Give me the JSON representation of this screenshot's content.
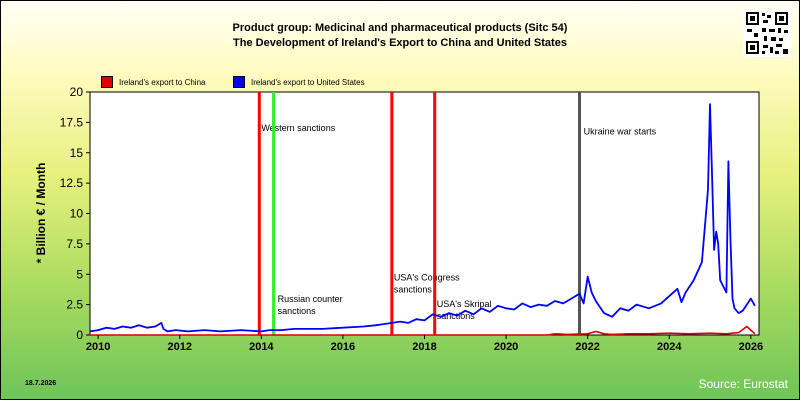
{
  "title": {
    "line1": "Product group: Medicinal and pharmaceutical products (Sitc 54)",
    "line2": "The Development of Ireland's Export to  China and United States"
  },
  "date_stamp": "18.7.2026",
  "source": "Source: Eurostat",
  "colors": {
    "china": "#e00000",
    "usa": "#0000ff",
    "sanction_red": "#ff0000",
    "sanction_green": "#33ee33",
    "war": "#555555"
  },
  "chart_data": {
    "type": "line",
    "title": "Product group: Medicinal and pharmaceutical products (Sitc 54)",
    "subtitle": "The Development of Ireland's Export to  China and United States",
    "xlabel": "",
    "ylabel": "* Billion € / Month",
    "xlim": [
      2009.8,
      2026.2
    ],
    "ylim": [
      0,
      20
    ],
    "x_ticks": [
      "2010",
      "2012",
      "2014",
      "2016",
      "2018",
      "2020",
      "2022",
      "2024",
      "2026"
    ],
    "y_ticks": [
      "0",
      "2.5",
      "5",
      "7.5",
      "10",
      "12.5",
      "15",
      "17.5",
      "20"
    ],
    "grid": false,
    "legend_position": "top-left",
    "series": [
      {
        "name": "Ireland's export to China",
        "color": "#e00000",
        "x": [
          2009.8,
          2021.0,
          2021.2,
          2021.5,
          2022.0,
          2022.2,
          2022.4,
          2022.6,
          2023.0,
          2023.5,
          2024.0,
          2024.5,
          2025.0,
          2025.4,
          2025.7,
          2025.9,
          2026.0,
          2026.1
        ],
        "values": [
          0.0,
          0.0,
          0.1,
          0.05,
          0.1,
          0.3,
          0.1,
          0.05,
          0.1,
          0.1,
          0.15,
          0.1,
          0.15,
          0.1,
          0.2,
          0.7,
          0.4,
          0.1
        ]
      },
      {
        "name": "Ireland's export to United States",
        "color": "#0000ff",
        "x": [
          2009.8,
          2010.0,
          2010.2,
          2010.4,
          2010.6,
          2010.8,
          2011.0,
          2011.2,
          2011.4,
          2011.55,
          2011.6,
          2011.7,
          2011.9,
          2012.2,
          2012.6,
          2013.0,
          2013.5,
          2014.0,
          2014.2,
          2014.5,
          2014.8,
          2015.0,
          2015.5,
          2016.0,
          2016.5,
          2016.8,
          2017.0,
          2017.2,
          2017.4,
          2017.6,
          2017.8,
          2018.0,
          2018.2,
          2018.4,
          2018.6,
          2018.8,
          2019.0,
          2019.2,
          2019.4,
          2019.6,
          2019.8,
          2020.0,
          2020.2,
          2020.4,
          2020.6,
          2020.8,
          2021.0,
          2021.2,
          2021.4,
          2021.6,
          2021.8,
          2021.9,
          2022.0,
          2022.1,
          2022.2,
          2022.4,
          2022.6,
          2022.8,
          2023.0,
          2023.2,
          2023.5,
          2023.8,
          2024.0,
          2024.2,
          2024.3,
          2024.4,
          2024.6,
          2024.8,
          2024.9,
          2024.95,
          2025.0,
          2025.05,
          2025.1,
          2025.15,
          2025.2,
          2025.25,
          2025.4,
          2025.45,
          2025.5,
          2025.55,
          2025.6,
          2025.7,
          2025.8,
          2025.9,
          2026.0,
          2026.1
        ],
        "values": [
          0.3,
          0.4,
          0.6,
          0.5,
          0.7,
          0.6,
          0.8,
          0.6,
          0.7,
          1.0,
          0.5,
          0.3,
          0.4,
          0.3,
          0.4,
          0.3,
          0.4,
          0.3,
          0.4,
          0.4,
          0.5,
          0.5,
          0.5,
          0.6,
          0.7,
          0.8,
          0.9,
          1.0,
          1.1,
          1.0,
          1.3,
          1.2,
          1.7,
          1.5,
          1.8,
          1.6,
          2.0,
          1.7,
          2.2,
          1.9,
          2.4,
          2.2,
          2.1,
          2.6,
          2.3,
          2.5,
          2.4,
          2.8,
          2.6,
          3.0,
          3.4,
          2.6,
          4.8,
          3.5,
          2.8,
          1.8,
          1.5,
          2.2,
          2.0,
          2.5,
          2.2,
          2.6,
          3.2,
          3.8,
          2.7,
          3.5,
          4.5,
          6.0,
          10.0,
          12.0,
          19.0,
          13.0,
          7.0,
          8.5,
          7.5,
          4.5,
          3.5,
          14.3,
          8.0,
          3.0,
          2.2,
          1.8,
          2.0,
          2.5,
          3.0,
          2.4
        ]
      }
    ],
    "annotations": [
      {
        "label": "",
        "x": 2013.95,
        "color": "#ff0000",
        "kind": "vline"
      },
      {
        "label": "Western sanctions",
        "x": 2014.0,
        "color": "",
        "kind": "text",
        "y": 16.8
      },
      {
        "label": "",
        "x": 2014.3,
        "color": "#33ee33",
        "kind": "vline"
      },
      {
        "label": "Russian counter sanctions",
        "x": 2014.4,
        "color": "",
        "kind": "text2",
        "y": 2.7
      },
      {
        "label": "",
        "x": 2017.2,
        "color": "#ff0000",
        "kind": "vline"
      },
      {
        "label": "USA's Congress sanctions",
        "x": 2017.25,
        "color": "",
        "kind": "text2",
        "y": 4.5
      },
      {
        "label": "",
        "x": 2018.25,
        "color": "#ff0000",
        "kind": "vline"
      },
      {
        "label": "USA's Skripal sanctions",
        "x": 2018.3,
        "color": "",
        "kind": "text2",
        "y": 2.3
      },
      {
        "label": "",
        "x": 2021.8,
        "color": "#555555",
        "kind": "vline"
      },
      {
        "label": "Ukraine war starts",
        "x": 2021.9,
        "color": "",
        "kind": "text",
        "y": 16.5
      }
    ]
  }
}
